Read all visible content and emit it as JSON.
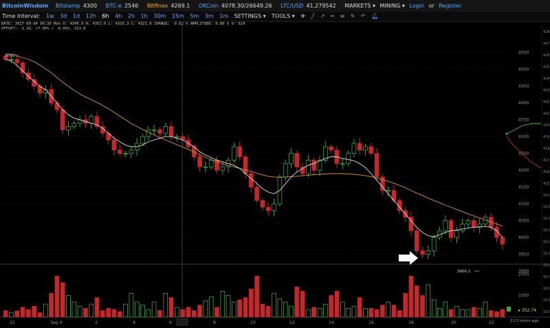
{
  "header": {
    "logo": "BitcoinWisdom",
    "exchanges": [
      {
        "name": "Bitstamp",
        "price": "4300"
      },
      {
        "name": "BTC-e",
        "price": "2546"
      },
      {
        "name": "Bitfinex",
        "price": "4269.1"
      },
      {
        "name": "OKCoin",
        "price": "4078.30/26649.26"
      },
      {
        "name": "LTC/USD",
        "price": "41.279542"
      }
    ],
    "selected_exchange": "Bitfinex",
    "menus": [
      "MARKETS ▾",
      "MINING ▾"
    ],
    "login": "Login",
    "or": "or",
    "register": "Register"
  },
  "toolbar": {
    "label": "Time Interval:",
    "intervals": [
      "1w",
      "3d",
      "1d",
      "12h",
      "6h",
      "4h",
      "2h",
      "1h",
      "30m",
      "15m",
      "5m",
      "3m",
      "1m"
    ],
    "selected_interval": "6h",
    "settings": "SETTINGS ▾",
    "tools": "TOOLS ▾",
    "icons": [
      "crosshair-icon",
      "line-tool-icon",
      "ray-tool-icon",
      "hline-tool-icon",
      "fib-tool-icon",
      "draw-tool-icon",
      "undo-icon",
      "bell-icon"
    ]
  },
  "info": {
    "line1": "DATE: 2017-09-04 06:30 Mon   O: 4349.9   H: 4351.0   L: 4316.3   C: 4323.0   CHANGE: -0.62 %   AMPLITUDE: 0.80 %   V: 524",
    "line2": "OFFSET: -1.26, +7.95% / -6.05%, 313.8"
  },
  "chart_data": {
    "type": "candlestick",
    "interval": "6h",
    "ylim": [
      3900,
      4580
    ],
    "price_ticks": [
      4550,
      4500,
      4450,
      4400,
      4350,
      4300,
      4250,
      4200,
      4150,
      4100,
      4050,
      4000,
      3950,
      3900
    ],
    "volume_ticks": [
      2000,
      1000
    ],
    "time_ticks": [
      "22",
      "Sep 4",
      "2",
      "4",
      "6",
      "6:30",
      "8",
      "10",
      "12",
      "14",
      "16",
      "18",
      "20",
      "22"
    ],
    "high_marker": "4542",
    "low_marker": "3900.1",
    "current_volume": "352.74",
    "crosshair_label": "6:30",
    "right_axis_values": [
      "4280",
      "4270",
      "4260",
      "4250",
      "4240",
      "4230",
      "4220",
      "4210",
      "4200",
      "4190",
      "4180",
      "4170",
      "4160",
      "4150",
      "10:00",
      "10:00",
      "10:00",
      "10:00",
      "10:00",
      "10:00",
      "10:00",
      "10:00",
      "10:00",
      "10:00",
      "10:00"
    ],
    "close_series": [
      4530,
      4530,
      4520,
      4490,
      4470,
      4450,
      4430,
      4440,
      4400,
      4380,
      4320,
      4330,
      4340,
      4350,
      4340,
      4360,
      4330,
      4310,
      4290,
      4260,
      4250,
      4250,
      4260,
      4280,
      4300,
      4320,
      4320,
      4310,
      4330,
      4300,
      4300,
      4290,
      4270,
      4240,
      4210,
      4210,
      4230,
      4200,
      4210,
      4230,
      4270,
      4240,
      4190,
      4150,
      4110,
      4090,
      4080,
      4100,
      4180,
      4220,
      4250,
      4210,
      4190,
      4230,
      4200,
      4230,
      4270,
      4260,
      4220,
      4220,
      4250,
      4280,
      4260,
      4270,
      4250,
      4180,
      4140,
      4140,
      4110,
      4080,
      4060,
      4020,
      3960,
      3950,
      3960,
      4000,
      4020,
      4050,
      4000,
      4020,
      4040,
      4050,
      4030,
      4040,
      4060,
      4030,
      4000,
      3980
    ],
    "ma_short": [
      4530,
      4525,
      4512,
      4495,
      4480,
      4465,
      4450,
      4440,
      4420,
      4400,
      4380,
      4365,
      4355,
      4350,
      4345,
      4340,
      4335,
      4325,
      4310,
      4295,
      4285,
      4275,
      4270,
      4270,
      4275,
      4285,
      4290,
      4295,
      4300,
      4300,
      4295,
      4290,
      4280,
      4270,
      4255,
      4245,
      4238,
      4230,
      4225,
      4220,
      4215,
      4205,
      4190,
      4175,
      4160,
      4145,
      4135,
      4130,
      4140,
      4160,
      4180,
      4195,
      4205,
      4215,
      4220,
      4228,
      4235,
      4240,
      4240,
      4235,
      4232,
      4228,
      4220,
      4208,
      4190,
      4170,
      4150,
      4130,
      4110,
      4090,
      4070,
      4050,
      4030,
      4015,
      4005,
      4002,
      4008,
      4015,
      4020,
      4022,
      4025,
      4028,
      4030,
      4032,
      4033,
      4030,
      4020,
      4000
    ],
    "ma_long": [
      4545,
      4545,
      4540,
      4535,
      4530,
      4523,
      4513,
      4502,
      4490,
      4476,
      4462,
      4450,
      4438,
      4427,
      4418,
      4410,
      4402,
      4393,
      4383,
      4372,
      4361,
      4350,
      4339,
      4330,
      4321,
      4313,
      4305,
      4297,
      4290,
      4283,
      4276,
      4269,
      4262,
      4254,
      4246,
      4238,
      4231,
      4225,
      4219,
      4214,
      4210,
      4206,
      4201,
      4196,
      4191,
      4186,
      4182,
      4180,
      4179,
      4180,
      4181,
      4182,
      4184,
      4185,
      4187,
      4188,
      4189,
      4190,
      4190,
      4190,
      4189,
      4188,
      4186,
      4184,
      4181,
      4177,
      4172,
      4167,
      4161,
      4155,
      4148,
      4140,
      4132,
      4125,
      4117,
      4110,
      4103,
      4096,
      4090,
      4083,
      4077,
      4070,
      4064,
      4058,
      4052,
      4046,
      4040,
      4034
    ],
    "volumes": [
      300,
      200,
      280,
      450,
      350,
      500,
      200,
      600,
      1100,
      1900,
      1600,
      1000,
      700,
      500,
      400,
      600,
      900,
      300,
      400,
      350,
      250,
      600,
      1100,
      700,
      550,
      350,
      700,
      300,
      1100,
      900,
      450,
      350,
      450,
      300,
      550,
      750,
      950,
      450,
      1200,
      1000,
      700,
      800,
      900,
      1300,
      1900,
      600,
      500,
      1100,
      850,
      700,
      500,
      1400,
      1200,
      350,
      450,
      400,
      600,
      1000,
      1200,
      700,
      400,
      500,
      900,
      400,
      400,
      350,
      550,
      700,
      550,
      300,
      1100,
      1900,
      1450,
      1000,
      1500,
      800,
      400,
      700,
      350,
      500,
      350,
      350,
      450,
      400,
      700,
      300,
      250,
      350
    ],
    "colors": {
      "up": "#3fa93f",
      "down": "#c4282b",
      "ma_short": "#e0e0e0",
      "ma_long": "#d9963a",
      "grid": "#2a2a2a",
      "crosshair": "#555555",
      "axis_text": "#999999"
    }
  },
  "time_ago": "11.5 hours ago"
}
